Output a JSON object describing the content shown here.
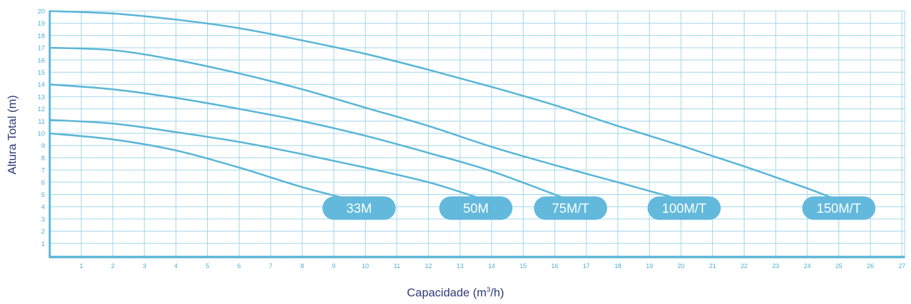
{
  "chart_data": {
    "type": "line",
    "ylabel": "Altura Total (m)",
    "xlabel_prefix": "Capacidade (m",
    "xlabel_sup": "3",
    "xlabel_suffix": "/h)",
    "x_ticks": [
      1,
      2,
      3,
      4,
      5,
      6,
      7,
      8,
      9,
      10,
      11,
      12,
      13,
      14,
      15,
      16,
      17,
      18,
      19,
      20,
      21,
      22,
      23,
      24,
      25,
      26,
      27
    ],
    "y_ticks": [
      1,
      2,
      3,
      4,
      5,
      6,
      7,
      8,
      9,
      10,
      11,
      12,
      13,
      14,
      15,
      16,
      17,
      18,
      19,
      20
    ],
    "xlim": [
      0,
      27
    ],
    "ylim": [
      0,
      20
    ],
    "grid": true,
    "colors": {
      "line": "#5ab6d6",
      "grid": "#9fd6ea",
      "axis": "#5ab6d6",
      "tick_text": "#4aaed3",
      "label_bg": "#62b9dc",
      "label_text": "#ffffff",
      "title_text": "#2e3a78"
    },
    "series": [
      {
        "name": "33M",
        "x": [
          0,
          2,
          4,
          6,
          8,
          9.8
        ],
        "y": [
          10,
          9.5,
          8.6,
          7.2,
          5.6,
          4.4
        ]
      },
      {
        "name": "50M",
        "x": [
          0,
          2,
          4,
          6,
          8,
          10,
          12,
          13.5
        ],
        "y": [
          11.1,
          10.8,
          10.1,
          9.3,
          8.3,
          7.2,
          6.0,
          4.8
        ]
      },
      {
        "name": "75M/T",
        "x": [
          0,
          2,
          4,
          6,
          8,
          10,
          12,
          14,
          16.5
        ],
        "y": [
          14,
          13.6,
          12.9,
          12.0,
          11.0,
          9.8,
          8.4,
          6.9,
          4.5
        ]
      },
      {
        "name": "100M/T",
        "x": [
          0,
          2,
          4,
          6,
          8,
          10,
          12,
          14,
          16,
          18,
          20.1
        ],
        "y": [
          17,
          16.8,
          16.0,
          14.9,
          13.6,
          12.1,
          10.6,
          8.9,
          7.4,
          6.0,
          4.5
        ]
      },
      {
        "name": "150M/T",
        "x": [
          0,
          2,
          4,
          6,
          8,
          10,
          12,
          14,
          16,
          18,
          20,
          22,
          24,
          25
        ],
        "y": [
          20,
          19.8,
          19.3,
          18.6,
          17.6,
          16.5,
          15.2,
          13.8,
          12.3,
          10.6,
          9.0,
          7.3,
          5.5,
          4.5
        ]
      }
    ]
  }
}
